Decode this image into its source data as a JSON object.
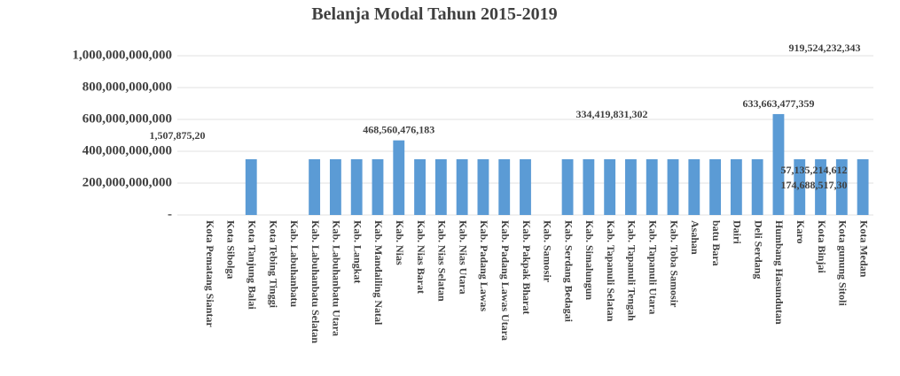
{
  "chart_data": {
    "type": "bar",
    "title": "Belanja Modal Tahun 2015-2019",
    "categories": [
      null,
      "Kota Pematang Siantar",
      "Kota Sibolga",
      "Kota Tanjung Balai",
      "Kota Tebing Tinggi",
      "Kab. Labuhanbatu",
      "Kab. Labuhanbatu Selatan",
      "Kab. Labuhanbatu Utara",
      "Kab. Langkat",
      "Kab. Mandailing Natal",
      "Kab. Nias",
      "Kab. Nias Barat",
      "Kab. Nias Selatan",
      "Kab. Nias Utara",
      "Kab. Padang Lawas",
      "Kab. Padang Lawas Utara",
      "Kab. Pakpak Bharat",
      "Kab. Samosir",
      "Kab. Serdang Bedagai",
      "Kab. Simalungun",
      "Kab. Tapanuli Selatan",
      "Kab. Tapanuli Tengah",
      "Kab. Tapanuli Utara",
      "Kab. Toba Samosir",
      "Asahan",
      "batu Bara",
      "Dairi",
      "Deli Serdang",
      "Humbang Hasundutan",
      "Karo",
      "Kota Binjai",
      "Kota gunung Sitoli",
      "Kota Medan"
    ],
    "values": [
      null,
      null,
      null,
      350000000000,
      null,
      null,
      350000000000,
      350000000000,
      350000000000,
      350000000000,
      468560476183,
      350000000000,
      350000000000,
      350000000000,
      350000000000,
      350000000000,
      350000000000,
      null,
      350000000000,
      350000000000,
      350000000000,
      350000000000,
      350000000000,
      350000000000,
      350000000000,
      350000000000,
      350000000000,
      350000000000,
      633663477359,
      350000000000,
      350000000000,
      350000000000,
      350000000000
    ],
    "value_labels": [
      null,
      null,
      null,
      null,
      null,
      null,
      null,
      null,
      null,
      null,
      "468,560,476,183",
      null,
      null,
      null,
      null,
      null,
      null,
      null,
      null,
      null,
      null,
      null,
      null,
      null,
      null,
      null,
      null,
      null,
      "633,663,477,359",
      null,
      null,
      null,
      null
    ],
    "annotations": [
      "919,524,232,343",
      "334,419,831,302",
      "1,507,875,20",
      "57,135,214,612",
      "174,688,517,30"
    ],
    "color": "#5b9bd5",
    "ylim": [
      0,
      1000000000000
    ],
    "yticks": [
      {
        "value": 0,
        "label": "-"
      },
      {
        "value": 200000000000,
        "label": "200,000,000,000"
      },
      {
        "value": 400000000000,
        "label": "400,000,000,000"
      },
      {
        "value": 600000000000,
        "label": "600,000,000,000"
      },
      {
        "value": 800000000000,
        "label": "800,000,000,000"
      },
      {
        "value": 1000000000000,
        "label": "1,000,000,000,000"
      }
    ],
    "grid": true
  }
}
